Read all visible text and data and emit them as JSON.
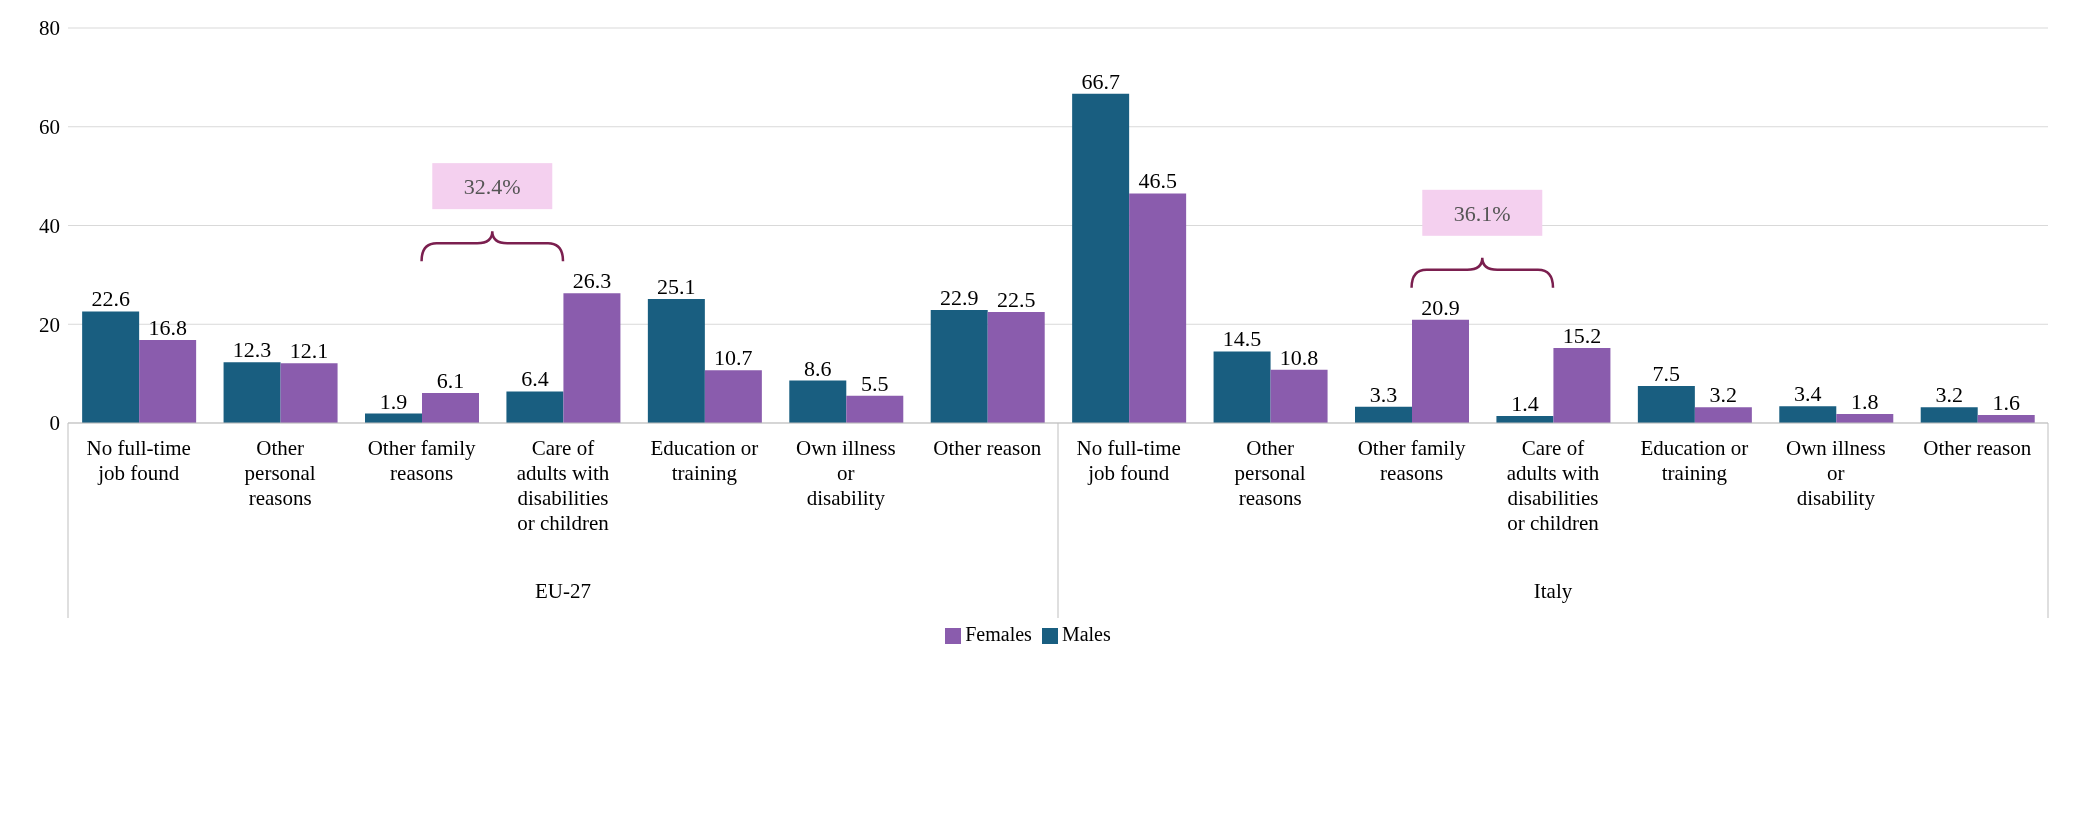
{
  "chart_data": {
    "type": "bar",
    "categories": [
      "No full-time job found",
      "Other personal reasons",
      "Other family reasons",
      "Care of adults with disabilities or children",
      "Education or training",
      "Own illness or disability",
      "Other reason",
      "No full-time job found",
      "Other personal reasons",
      "Other family reasons",
      "Care of adults with disabilities or children",
      "Education or training",
      "Own illness or disability",
      "Other reason"
    ],
    "series": [
      {
        "name": "Males",
        "color": "#195e80",
        "values": [
          22.6,
          12.3,
          1.9,
          6.4,
          25.1,
          8.6,
          22.9,
          66.7,
          14.5,
          3.3,
          1.4,
          7.5,
          3.4,
          3.2
        ]
      },
      {
        "name": "Females",
        "color": "#8a5cad",
        "values": [
          16.8,
          12.1,
          6.1,
          26.3,
          10.7,
          5.5,
          22.5,
          46.5,
          10.8,
          20.9,
          15.2,
          3.2,
          1.8,
          1.6
        ]
      }
    ],
    "ylim": [
      0,
      80
    ],
    "yticks": [
      0,
      20,
      40,
      60,
      80
    ],
    "grid": "y",
    "legend": "bottom",
    "data_labels": true,
    "annotations": [
      "EU-27",
      "Italy",
      "32.4%",
      "36.1%"
    ]
  }
}
